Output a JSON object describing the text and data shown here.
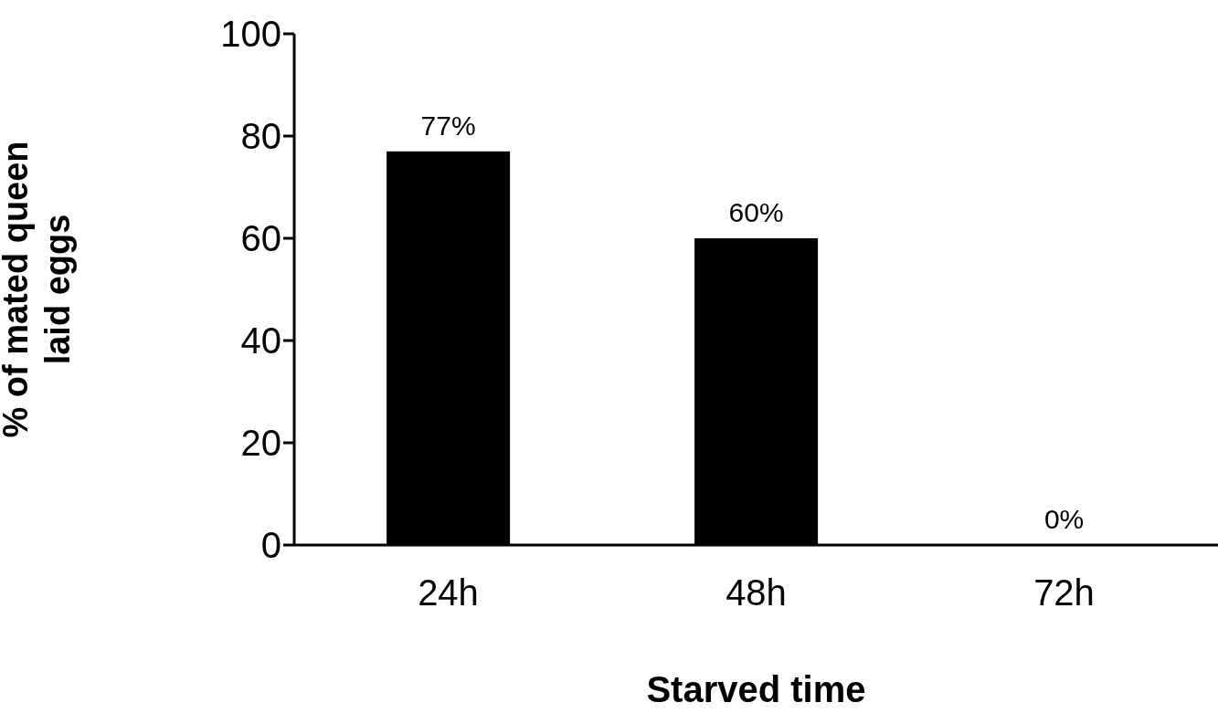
{
  "chart_data": {
    "type": "bar",
    "xlabel": "Starved time",
    "ylabel": "% of mated queen\nlaid eggs",
    "categories": [
      "24h",
      "48h",
      "72h"
    ],
    "values": [
      77,
      60,
      0
    ],
    "color": "#000000",
    "value_labels": [
      "77%",
      "60%",
      "0%"
    ],
    "ylim": [
      0,
      100
    ],
    "yticks": [
      0,
      20,
      40,
      60,
      80,
      100
    ]
  }
}
